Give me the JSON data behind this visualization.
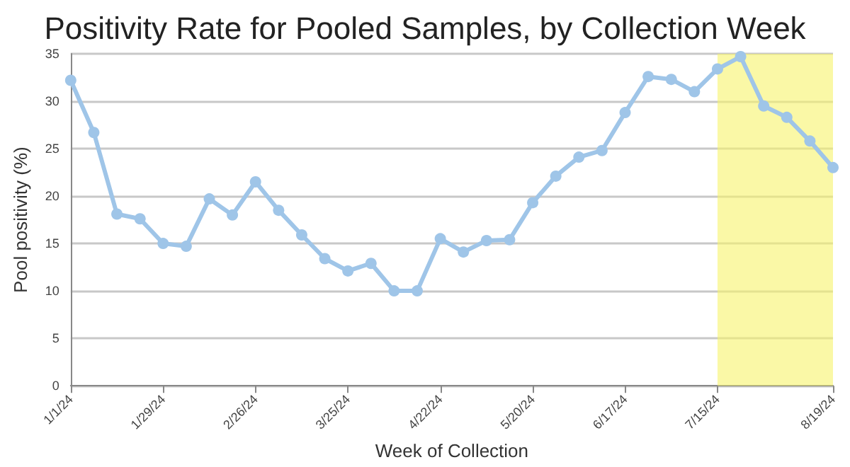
{
  "chart_data": {
    "type": "line",
    "title": "Positivity Rate for Pooled Samples, by Collection Week",
    "xlabel": "Week of Collection",
    "ylabel": "Pool positivity (%)",
    "x": [
      "2024-01-01",
      "2024-01-08",
      "2024-01-15",
      "2024-01-22",
      "2024-01-29",
      "2024-02-05",
      "2024-02-12",
      "2024-02-19",
      "2024-02-26",
      "2024-03-04",
      "2024-03-11",
      "2024-03-18",
      "2024-03-25",
      "2024-04-01",
      "2024-04-08",
      "2024-04-15",
      "2024-04-22",
      "2024-04-29",
      "2024-05-06",
      "2024-05-13",
      "2024-05-20",
      "2024-05-27",
      "2024-06-03",
      "2024-06-10",
      "2024-06-17",
      "2024-06-24",
      "2024-07-01",
      "2024-07-08",
      "2024-07-15",
      "2024-07-22",
      "2024-07-29",
      "2024-08-05",
      "2024-08-12",
      "2024-08-19"
    ],
    "series": [
      {
        "color": "#9fc5e8",
        "values": [
          32.2,
          26.7,
          18.1,
          17.6,
          15.0,
          14.7,
          19.7,
          18.0,
          21.5,
          18.5,
          15.9,
          13.4,
          12.1,
          12.9,
          10.0,
          10.0,
          15.5,
          14.1,
          15.3,
          15.4,
          19.3,
          22.1,
          24.1,
          24.8,
          28.8,
          32.6,
          32.3,
          31.0,
          33.4,
          34.7,
          29.5,
          28.3,
          25.8,
          23.0
        ]
      }
    ],
    "xlim": [
      "2024-01-01",
      "2024-08-19"
    ],
    "xticks": [
      {
        "value": "2024-01-01",
        "label": "1/1/24"
      },
      {
        "value": "2024-01-29",
        "label": "1/29/24"
      },
      {
        "value": "2024-02-26",
        "label": "2/26/24"
      },
      {
        "value": "2024-03-25",
        "label": "3/25/24"
      },
      {
        "value": "2024-04-22",
        "label": "4/22/24"
      },
      {
        "value": "2024-05-20",
        "label": "5/20/24"
      },
      {
        "value": "2024-06-17",
        "label": "6/17/24"
      },
      {
        "value": "2024-07-15",
        "label": "7/15/24"
      },
      {
        "value": "2024-08-19",
        "label": "8/19/24"
      }
    ],
    "ylim": [
      0,
      35
    ],
    "yticks": [
      0,
      5,
      10,
      15,
      20,
      25,
      30,
      35
    ],
    "grid": "y",
    "marker": "circle",
    "line_style": "solid",
    "bands": [
      {
        "axis": "x",
        "from": "2024-07-15",
        "to": "2024-08-19",
        "color": "#f7f36b"
      }
    ]
  }
}
